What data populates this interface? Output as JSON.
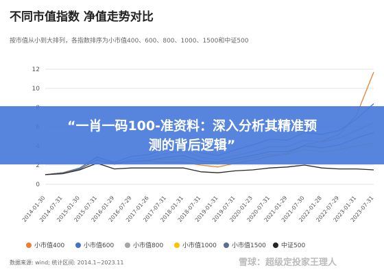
{
  "title": "不同市值指数 净值走势对比",
  "subtitle": "按市值从小到大排列，各指数排序为小市值400、600、800、1000、1500和中证500",
  "banner": "“一肖一码100-准资料：深入分析其精准预测的背后逻辑”",
  "source": "数据来源: wind; 统计区间: 2014.1~2023.11",
  "watermark": "雪球：超级定投家王理人",
  "chart_data": {
    "type": "line",
    "title": "不同市值指数 净值走势对比",
    "ylim": [
      0,
      12
    ],
    "yticks": [
      0,
      2,
      4,
      6,
      8,
      10,
      12
    ],
    "grid": "horizontal",
    "legend_position": "bottom",
    "x": [
      "2014-01-30",
      "2014-07-31",
      "2015-01-30",
      "2015-07-31",
      "2016-01-29",
      "2016-07-29",
      "2017-01-26",
      "2017-07-31",
      "2018-01-31",
      "2018-07-31",
      "2019-01-31",
      "2019-07-31",
      "2020-01-23",
      "2020-07-31",
      "2021-01-29",
      "2021-07-30",
      "2022-01-28",
      "2022-07-29",
      "2023-01-31",
      "2023-07-31"
    ],
    "series": [
      {
        "name": "小市值400",
        "color": "#ed7d31",
        "values": [
          1.0,
          1.2,
          1.7,
          2.9,
          2.2,
          2.4,
          2.4,
          2.3,
          2.3,
          2.0,
          1.8,
          2.2,
          2.5,
          2.9,
          3.2,
          4.1,
          4.5,
          5.2,
          7.2,
          11.7
        ]
      },
      {
        "name": "小市值600",
        "color": "#4472c4",
        "values": [
          1.0,
          1.2,
          1.7,
          2.8,
          2.3,
          2.9,
          3.1,
          3.7,
          4.2,
          3.3,
          3.0,
          3.6,
          4.1,
          4.7,
          4.6,
          5.4,
          5.2,
          5.6,
          6.8,
          8.4
        ]
      },
      {
        "name": "小市值800",
        "color": "#a5a5a5",
        "values": [
          1.0,
          1.2,
          1.6,
          2.6,
          2.2,
          2.6,
          2.8,
          3.2,
          3.5,
          2.8,
          2.6,
          3.0,
          3.4,
          3.9,
          3.9,
          4.6,
          4.4,
          4.8,
          5.6,
          6.4
        ]
      },
      {
        "name": "小市值1000",
        "color": "#ffc000",
        "values": [
          1.0,
          1.2,
          1.6,
          2.5,
          2.1,
          2.4,
          2.5,
          2.6,
          2.7,
          2.2,
          2.1,
          2.5,
          2.8,
          3.1,
          3.1,
          3.6,
          3.4,
          3.6,
          4.0,
          4.3
        ]
      },
      {
        "name": "小市值1500",
        "color": "#5b6e8a",
        "values": [
          1.0,
          1.2,
          1.6,
          2.5,
          2.1,
          2.4,
          2.5,
          2.8,
          3.0,
          2.4,
          2.3,
          2.7,
          3.0,
          3.4,
          3.4,
          4.0,
          3.8,
          4.1,
          4.8,
          5.4
        ]
      },
      {
        "name": "中证500",
        "color": "#262626",
        "values": [
          1.0,
          1.1,
          1.5,
          2.2,
          1.6,
          1.7,
          1.7,
          1.7,
          1.7,
          1.3,
          1.2,
          1.4,
          1.5,
          1.7,
          1.8,
          2.0,
          1.7,
          1.6,
          1.6,
          1.5
        ]
      }
    ]
  }
}
